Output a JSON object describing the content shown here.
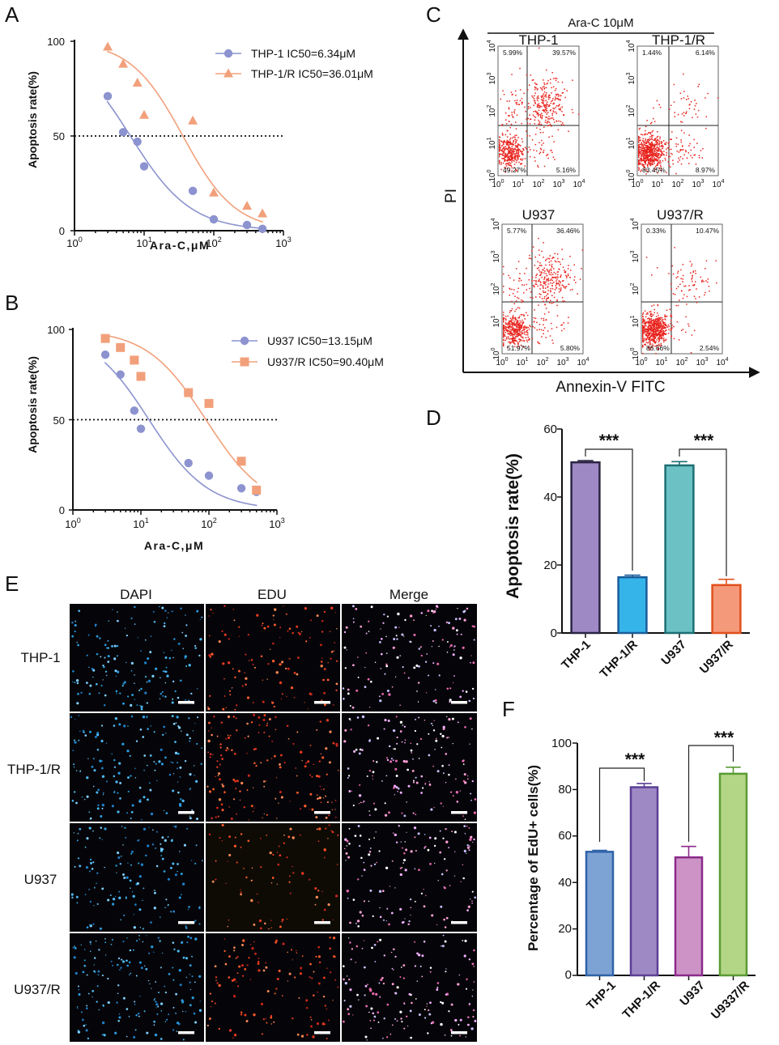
{
  "panels": {
    "A": {
      "letter": "A",
      "chart_data": {
        "type": "scatter",
        "xlabel": "Ara-C,μM",
        "ylabel": "Apoptosis rate(%)",
        "xscale": "log",
        "xlim": [
          1,
          1000
        ],
        "ylim": [
          0,
          100
        ],
        "yticks": [
          "0",
          "50",
          "100"
        ],
        "xticks": [
          {
            "base": "10",
            "exp": "0"
          },
          {
            "base": "10",
            "exp": "1"
          },
          {
            "base": "10",
            "exp": "2"
          },
          {
            "base": "10",
            "exp": "3"
          }
        ],
        "reference_line": 50,
        "legend_position": "top-right",
        "series": [
          {
            "name": "THP-1 IC50=6.34μM",
            "marker": "circle",
            "color": "#8c93cf",
            "x": [
              3,
              5,
              8,
              10,
              50,
              100,
              300,
              500
            ],
            "y": [
              71,
              52,
              47,
              34,
              21,
              6,
              3,
              1
            ],
            "fit": {
              "ic50": 6.34,
              "top": 100,
              "bottom": 0,
              "hill": 1.0
            }
          },
          {
            "name": "THP-1/R IC50=36.01μM",
            "marker": "triangle",
            "color": "#f2a07b",
            "x": [
              3,
              5,
              8,
              10,
              50,
              100,
              300,
              500
            ],
            "y": [
              97,
              88,
              78,
              61,
              58,
              20,
              13,
              9
            ],
            "fit": {
              "ic50": 36.01,
              "top": 100,
              "bottom": 0,
              "hill": 1.15
            }
          }
        ]
      }
    },
    "B": {
      "letter": "B",
      "chart_data": {
        "type": "scatter",
        "xlabel": "Ara-C,μM",
        "ylabel": "Apoptosis rate(%)",
        "xscale": "log",
        "xlim": [
          1,
          1000
        ],
        "ylim": [
          0,
          100
        ],
        "yticks": [
          "0",
          "50",
          "100"
        ],
        "xticks": [
          {
            "base": "10",
            "exp": "0"
          },
          {
            "base": "10",
            "exp": "1"
          },
          {
            "base": "10",
            "exp": "2"
          },
          {
            "base": "10",
            "exp": "3"
          }
        ],
        "reference_line": 50,
        "legend_position": "top-right",
        "series": [
          {
            "name": "U937 IC50=13.15μM",
            "marker": "circle",
            "color": "#8c93cf",
            "x": [
              3,
              5,
              8,
              10,
              50,
              100,
              300,
              500
            ],
            "y": [
              86,
              75,
              55,
              45,
              26,
              19,
              12,
              10
            ],
            "fit": {
              "ic50": 13.15,
              "top": 100,
              "bottom": 0,
              "hill": 1.0
            }
          },
          {
            "name": "U937/R IC50=90.40μM",
            "marker": "square",
            "color": "#f2a07b",
            "x": [
              3,
              5,
              8,
              10,
              50,
              100,
              300,
              500
            ],
            "y": [
              95,
              90,
              83,
              74,
              65,
              59,
              27,
              11
            ],
            "fit": {
              "ic50": 90.4,
              "top": 100,
              "bottom": 0,
              "hill": 1.0
            }
          }
        ]
      }
    },
    "C": {
      "letter": "C",
      "treatment": "Ara-C 10μM",
      "xlabel": "Annexin-V FITC",
      "ylabel": "PI",
      "tick_labels": [
        "10",
        "10",
        "10",
        "10",
        "10"
      ],
      "tick_exps": [
        "0",
        "1",
        "2",
        "3",
        "4"
      ],
      "chart_data": {
        "type": "scatter",
        "subplots": [
          {
            "title": "THP-1",
            "quadrants": {
              "upper_left": "5.99%",
              "upper_right": "39.57%",
              "lower_left": "49.27%",
              "lower_right": "5.16%"
            }
          },
          {
            "title": "THP-1/R",
            "quadrants": {
              "upper_left": "1.44%",
              "upper_right": "6.14%",
              "lower_left": "83.45%",
              "lower_right": "8.97%"
            }
          },
          {
            "title": "U937",
            "quadrants": {
              "upper_left": "5.77%",
              "upper_right": "36.46%",
              "lower_left": "51.97%",
              "lower_right": "5.80%"
            }
          },
          {
            "title": "U937/R",
            "quadrants": {
              "upper_left": "0.33%",
              "upper_right": "10.47%",
              "lower_left": "86.66%",
              "lower_right": "2.54%"
            }
          }
        ]
      },
      "dot_color": "#e8231d"
    },
    "D": {
      "letter": "D",
      "significance": "***",
      "chart_data": {
        "type": "bar",
        "ylabel": "Apoptosis rate(%)",
        "ylim": [
          0,
          60
        ],
        "yticks": [
          "0",
          "20",
          "40",
          "60"
        ],
        "categories": [
          "THP-1",
          "THP-1/R",
          "U937",
          "U937/R"
        ],
        "values": [
          50.2,
          16.4,
          49.3,
          14.1
        ],
        "errors": [
          0.5,
          0.6,
          1.1,
          1.7
        ],
        "fill_colors": [
          "#9f89c5",
          "#35b4ea",
          "#6cc1c5",
          "#f4997a"
        ],
        "edge_colors": [
          "#2b2544",
          "#1a5c9a",
          "#1c6e72",
          "#e0501c"
        ],
        "comparisons": [
          {
            "pair": [
              "THP-1",
              "THP-1/R"
            ],
            "label": "***"
          },
          {
            "pair": [
              "U937",
              "U937/R"
            ],
            "label": "***"
          }
        ]
      }
    },
    "E": {
      "letter": "E",
      "columns": [
        "DAPI",
        "EDU",
        "Merge"
      ],
      "rows": [
        "THP-1",
        "THP-1/R",
        "U937",
        "U937/R"
      ]
    },
    "F": {
      "letter": "F",
      "significance": "***",
      "chart_data": {
        "type": "bar",
        "ylabel": "Percentage of EdU+ cells(%)",
        "ylim": [
          0,
          100
        ],
        "yticks": [
          "0",
          "20",
          "40",
          "60",
          "80",
          "100"
        ],
        "categories": [
          "THP-1",
          "THP-1/R",
          "U937",
          "U9337/R"
        ],
        "values": [
          53.2,
          81.0,
          50.8,
          86.8
        ],
        "errors": [
          0.6,
          1.6,
          4.7,
          2.8
        ],
        "fill_colors": [
          "#7da3d4",
          "#9f89c5",
          "#cd93c6",
          "#b3d686"
        ],
        "edge_colors": [
          "#2f62a8",
          "#5c3f95",
          "#8b2a8a",
          "#5a9a33"
        ],
        "comparisons": [
          {
            "pair": [
              "THP-1",
              "THP-1/R"
            ],
            "label": "***"
          },
          {
            "pair": [
              "U937",
              "U9337/R"
            ],
            "label": "***"
          }
        ]
      }
    }
  }
}
